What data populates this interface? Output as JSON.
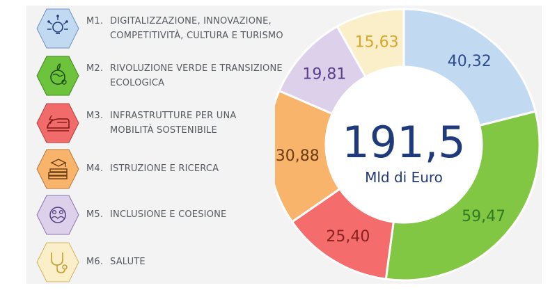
{
  "missions": [
    {
      "code": "M1.",
      "line1": "DIGITALIZZAZIONE, INNOVAZIONE,",
      "line2": "COMPETITIVITÀ, CULTURA E TURISMO",
      "icon": "digital-lightbulb-icon",
      "fill": "#c2daf1",
      "stroke": "#6f8fc4"
    },
    {
      "code": "M2.",
      "line1": "RIVOLUZIONE VERDE E TRANSIZIONE",
      "line2": "ECOLOGICA",
      "icon": "green-globe-icon",
      "fill": "#6ec33c",
      "stroke": "#3f8a1e"
    },
    {
      "code": "M3.",
      "line1": "INFRASTRUTTURE PER UNA",
      "line2": "MOBILITÀ SOSTENIBILE",
      "icon": "train-icon",
      "fill": "#f26b6b",
      "stroke": "#b83c3c"
    },
    {
      "code": "M4.",
      "line1": "ISTRUZIONE E RICERCA",
      "line2": "",
      "icon": "books-graduation-cap-icon",
      "fill": "#f8b46a",
      "stroke": "#b8753a"
    },
    {
      "code": "M5.",
      "line1": "INCLUSIONE E COESIONE",
      "line2": "",
      "icon": "inclusion-hands-icon",
      "fill": "#ddd0ea",
      "stroke": "#8a74ad"
    },
    {
      "code": "M6.",
      "line1": "SALUTE",
      "line2": "",
      "icon": "stethoscope-icon",
      "fill": "#fbefc9",
      "stroke": "#d2b35c"
    }
  ],
  "chart_data": {
    "type": "pie",
    "donut": true,
    "center_value": "191,5",
    "center_label": "Mld di Euro",
    "slices": [
      {
        "category": "M1",
        "label": "40,32",
        "value": 40.32,
        "color": "#c2daf1",
        "label_color": "#2e4a8e"
      },
      {
        "category": "M2",
        "label": "59,47",
        "value": 59.47,
        "color": "#82c744",
        "label_color": "#2f7b22"
      },
      {
        "category": "M3",
        "label": "25,40",
        "value": 25.4,
        "color": "#f46c6c",
        "label_color": "#8a1f1f"
      },
      {
        "category": "M4",
        "label": "30,88",
        "value": 30.88,
        "color": "#f9b46b",
        "label_color": "#6a3b10"
      },
      {
        "category": "M5",
        "label": "19,81",
        "value": 19.81,
        "color": "#ddd0ea",
        "label_color": "#5a3f8c"
      },
      {
        "category": "M6",
        "label": "15,63",
        "value": 15.63,
        "color": "#fbefc9",
        "label_color": "#d6a72a"
      }
    ],
    "center_color": "#1f3a7a"
  }
}
